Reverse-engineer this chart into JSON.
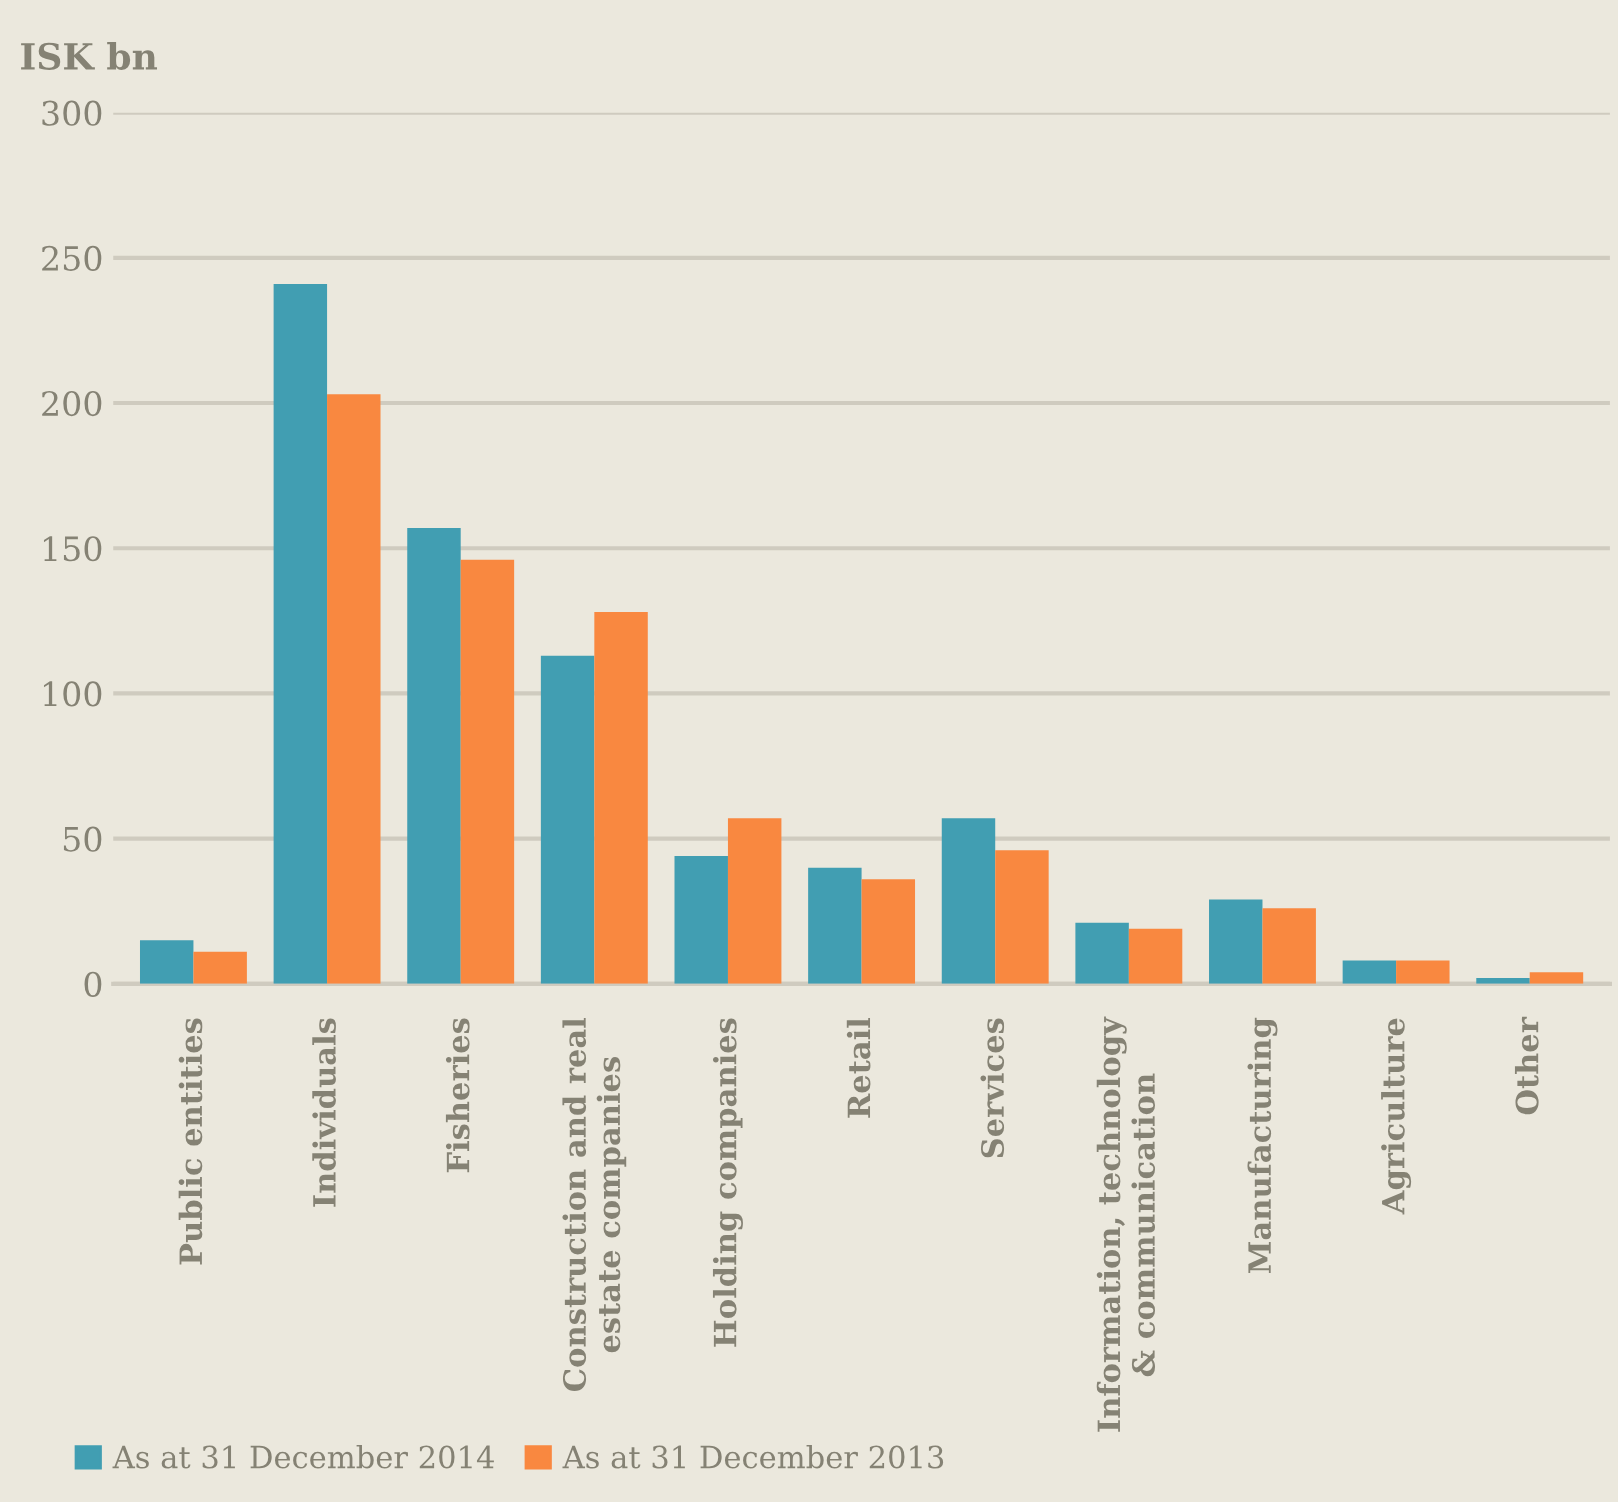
{
  "chart_data": {
    "type": "bar",
    "ylabel": "ISK bn",
    "categories": [
      "Public entities",
      "Individuals",
      "Fisheries",
      "Construction and real\nestate companies",
      "Holding companies",
      "Retail",
      "Services",
      "Information, technology\n& communication",
      "Manufacturing",
      "Agriculture",
      "Other"
    ],
    "series": [
      {
        "name": "As at 31 December 2014",
        "color": "#419eb2",
        "values": [
          15,
          241,
          157,
          113,
          44,
          40,
          57,
          21,
          29,
          8,
          2
        ]
      },
      {
        "name": "As at 31 December 2013",
        "color": "#f98840",
        "values": [
          11,
          203,
          146,
          128,
          57,
          36,
          46,
          19,
          26,
          8,
          4
        ]
      }
    ],
    "ylim": [
      0,
      300
    ],
    "yticks": [
      0,
      50,
      100,
      150,
      200,
      250,
      300
    ],
    "grid": "y",
    "legend": "bottom"
  }
}
